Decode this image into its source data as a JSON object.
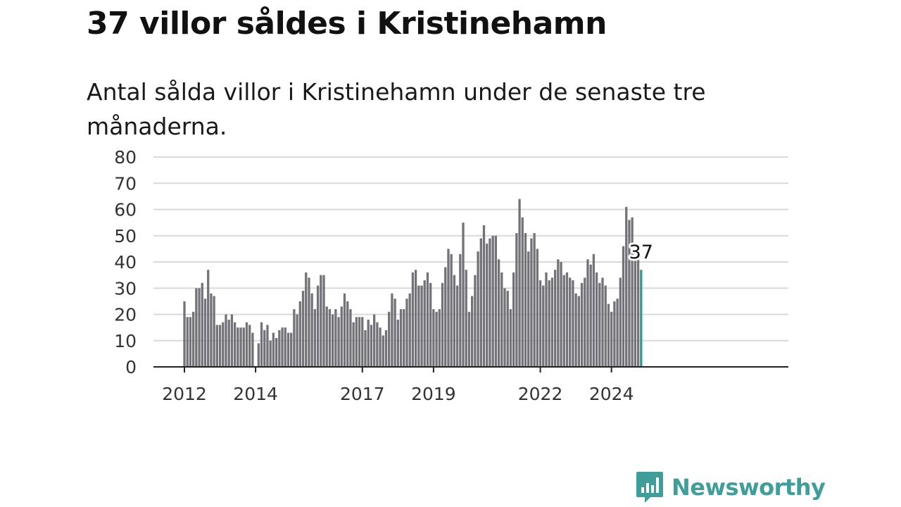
{
  "title": "37 villor såldes i Kristinehamn",
  "subtitle": "Antal sålda villor i Kristinehamn under de senaste tre månaderna.",
  "brand": {
    "name": "Newsworthy",
    "icon": "bar-chart-speech-icon",
    "color": "#3f9e9a"
  },
  "chart_data": {
    "type": "bar",
    "x_start": "2012-01",
    "y_ticks": [
      0,
      10,
      20,
      30,
      40,
      50,
      60,
      70,
      80
    ],
    "x_ticks": [
      "2012",
      "2014",
      "2017",
      "2019",
      "2022",
      "2024"
    ],
    "ylim": [
      0,
      80
    ],
    "grid": true,
    "bar_color": "#737278",
    "highlight_color": "#2a9d95",
    "highlight_label": "37",
    "values": [
      25,
      19,
      19,
      21,
      30,
      30,
      32,
      26,
      37,
      28,
      27,
      16,
      16,
      17,
      20,
      18,
      20,
      17,
      15,
      15,
      15,
      17,
      16,
      13,
      0,
      9,
      17,
      14,
      16,
      10,
      13,
      11,
      14,
      15,
      15,
      13,
      13,
      22,
      20,
      25,
      29,
      36,
      34,
      28,
      22,
      31,
      35,
      35,
      23,
      22,
      20,
      22,
      19,
      23,
      28,
      25,
      22,
      17,
      19,
      19,
      19,
      14,
      18,
      16,
      20,
      17,
      15,
      12,
      14,
      21,
      28,
      26,
      18,
      22,
      22,
      26,
      28,
      36,
      37,
      31,
      31,
      33,
      36,
      32,
      22,
      21,
      22,
      32,
      38,
      45,
      43,
      35,
      31,
      43,
      55,
      37,
      21,
      27,
      35,
      44,
      49,
      54,
      47,
      49,
      50,
      50,
      41,
      36,
      30,
      29,
      22,
      36,
      51,
      64,
      57,
      51,
      44,
      49,
      51,
      45,
      33,
      31,
      36,
      33,
      34,
      37,
      41,
      40,
      35,
      36,
      34,
      33,
      28,
      27,
      32,
      34,
      41,
      39,
      43,
      36,
      32,
      34,
      31,
      24,
      21,
      25,
      26,
      34,
      46,
      61,
      56,
      57,
      41,
      41,
      37
    ]
  }
}
